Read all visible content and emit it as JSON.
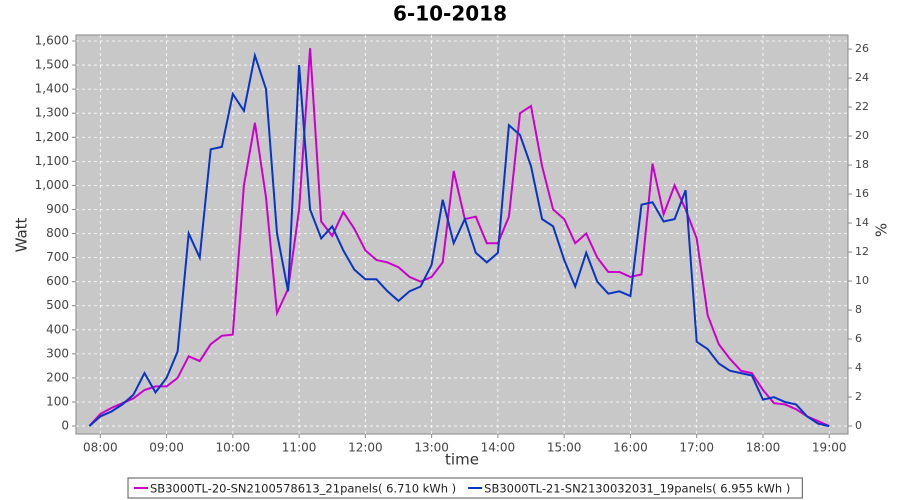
{
  "chart_data": {
    "type": "line",
    "title": "6-10-2018",
    "x_label": "time",
    "y_label": "Watt",
    "y2_label": "%",
    "x": [
      470,
      480,
      490,
      500,
      510,
      520,
      530,
      540,
      550,
      560,
      570,
      580,
      590,
      600,
      610,
      620,
      630,
      640,
      650,
      660,
      670,
      680,
      690,
      700,
      710,
      720,
      730,
      740,
      750,
      760,
      770,
      780,
      790,
      800,
      810,
      820,
      830,
      840,
      850,
      860,
      870,
      880,
      890,
      900,
      910,
      920,
      930,
      940,
      950,
      960,
      970,
      980,
      990,
      1000,
      1010,
      1020,
      1030,
      1040,
      1050,
      1060,
      1070,
      1080,
      1090,
      1100,
      1110,
      1120,
      1130,
      1140
    ],
    "series": [
      {
        "name": "SB3000TL-20-SN2100578613_21panels( 6.710 kWh )",
        "color": "#cc00cc",
        "values": [
          0,
          50,
          75,
          95,
          115,
          150,
          165,
          165,
          200,
          290,
          270,
          340,
          375,
          380,
          1000,
          1260,
          950,
          470,
          570,
          900,
          1570,
          850,
          790,
          890,
          820,
          730,
          690,
          680,
          660,
          620,
          600,
          620,
          680,
          1060,
          860,
          870,
          760,
          760,
          870,
          1300,
          1330,
          1080,
          900,
          860,
          760,
          800,
          700,
          640,
          640,
          620,
          630,
          1090,
          880,
          1000,
          900,
          780,
          460,
          340,
          280,
          230,
          220,
          150,
          95,
          90,
          70,
          40,
          20,
          0
        ]
      },
      {
        "name": "SB3000TL-21-SN2130032031_19panels( 6.955 kWh )",
        "color": "#0a35c2",
        "values": [
          0,
          40,
          60,
          90,
          130,
          220,
          140,
          200,
          310,
          800,
          700,
          1150,
          1160,
          1380,
          1310,
          1540,
          1400,
          800,
          560,
          1500,
          900,
          780,
          830,
          730,
          650,
          610,
          610,
          560,
          520,
          560,
          580,
          670,
          940,
          760,
          860,
          720,
          680,
          720,
          1250,
          1210,
          1080,
          860,
          830,
          690,
          580,
          720,
          600,
          550,
          560,
          540,
          920,
          930,
          850,
          860,
          980,
          350,
          320,
          260,
          230,
          220,
          210,
          110,
          120,
          100,
          90,
          40,
          10,
          0
        ]
      }
    ],
    "xlim": [
      458,
      1157
    ],
    "xticks": [
      {
        "value": 480,
        "label": "08:00"
      },
      {
        "value": 540,
        "label": "09:00"
      },
      {
        "value": 600,
        "label": "10:00"
      },
      {
        "value": 660,
        "label": "11:00"
      },
      {
        "value": 720,
        "label": "12:00"
      },
      {
        "value": 780,
        "label": "13:00"
      },
      {
        "value": 840,
        "label": "14:00"
      },
      {
        "value": 900,
        "label": "15:00"
      },
      {
        "value": 960,
        "label": "16:00"
      },
      {
        "value": 1020,
        "label": "17:00"
      },
      {
        "value": 1080,
        "label": "18:00"
      },
      {
        "value": 1140,
        "label": "19:00"
      }
    ],
    "ylim": [
      -33,
      1625
    ],
    "yticks": [
      0,
      100,
      200,
      300,
      400,
      500,
      600,
      700,
      800,
      900,
      {
        "value": 1000,
        "label": "1,000"
      },
      {
        "value": 1100,
        "label": "1,100"
      },
      {
        "value": 1200,
        "label": "1,200"
      },
      {
        "value": 1300,
        "label": "1,300"
      },
      {
        "value": 1400,
        "label": "1,400"
      },
      {
        "value": 1500,
        "label": "1,500"
      },
      {
        "value": 1600,
        "label": "1,600"
      }
    ],
    "y2lim": [
      -0.55,
      26.97
    ],
    "y2ticks": [
      0,
      2,
      4,
      6,
      8,
      10,
      12,
      14,
      16,
      18,
      20,
      22,
      24,
      26
    ],
    "grid": true,
    "legend": "bottom",
    "plot_background": "#c8c8c8"
  }
}
